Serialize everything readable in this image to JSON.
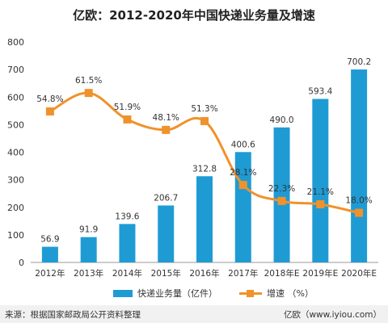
{
  "title": "亿欧：2012-2020年中国快递业务量及增速",
  "footer": {
    "source": "来源：根据国家邮政局公开资料整理",
    "brand": "亿欧（www.iyiou.com）"
  },
  "legend": {
    "bar_label": "快递业务量（亿件）",
    "line_label": "增速 （%）"
  },
  "colors": {
    "bar": "#1f9bd4",
    "line": "#f0922b",
    "grid": "#d9d9d9",
    "axis": "#999999"
  },
  "chart_data": {
    "type": "bar",
    "title": "亿欧：2012-2020年中国快递业务量及增速",
    "categories": [
      "2012年",
      "2013年",
      "2014年",
      "2015年",
      "2016年",
      "2017年",
      "2018年E",
      "2019年E",
      "2020年E"
    ],
    "series": [
      {
        "name": "快递业务量（亿件）",
        "type": "bar",
        "values": [
          56.9,
          91.9,
          139.6,
          206.7,
          312.8,
          400.6,
          490.0,
          593.4,
          700.2
        ],
        "labels": [
          "56.9",
          "91.9",
          "139.6",
          "206.7",
          "312.8",
          "400.6",
          "490.0",
          "593.4",
          "700.2"
        ]
      },
      {
        "name": "增速 （%）",
        "type": "line",
        "values": [
          54.8,
          61.5,
          51.9,
          48.1,
          51.3,
          28.1,
          22.3,
          21.1,
          18.0
        ],
        "labels": [
          "54.8%",
          "61.5%",
          "51.9%",
          "48.1%",
          "51.3%",
          "28.1%",
          "22.3%",
          "21.1%",
          "18.0%"
        ]
      }
    ],
    "yticks": [
      "0",
      "100",
      "200",
      "300",
      "400",
      "500",
      "600",
      "700",
      "800"
    ],
    "ylim": [
      0,
      800
    ],
    "line_ylim": [
      0,
      80
    ],
    "grid": false,
    "legend": "bottom"
  }
}
